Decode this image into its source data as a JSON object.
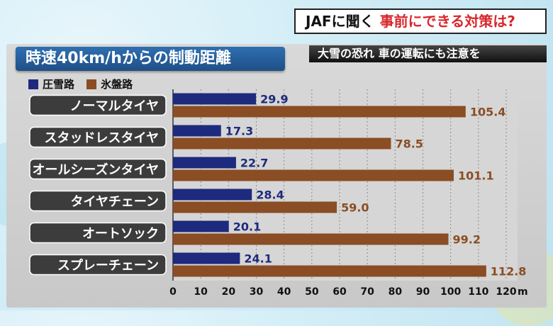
{
  "header": {
    "caption_main": "JAFに聞く",
    "caption_highlight": "事前にできる対策は?",
    "sub_caption": "大雪の恐れ 車の運転にも注意を"
  },
  "colors": {
    "series_snow": "#1d2a7d",
    "series_ice": "#8a4d24",
    "title_bg": "#2a64a3",
    "highlight": "#d8262b"
  },
  "chart_data": {
    "type": "bar",
    "orientation": "horizontal",
    "title": "時速40km/hからの制動距離",
    "categories": [
      "ノーマルタイヤ",
      "スタッドレスタイヤ",
      "オールシーズンタイヤ",
      "タイヤチェーン",
      "オートソック",
      "スプレーチェーン"
    ],
    "series": [
      {
        "name": "圧雪路",
        "values": [
          29.9,
          17.3,
          22.7,
          28.4,
          20.1,
          24.1
        ],
        "value_labels": [
          "29.9",
          "17.3",
          "22.7",
          "28.4",
          "20.1",
          "24.1"
        ]
      },
      {
        "name": "氷盤路",
        "values": [
          105.4,
          78.5,
          101.1,
          59.0,
          99.2,
          112.8
        ],
        "value_labels": [
          "105.4",
          "78.5",
          "101.1",
          "59.0",
          "99.2",
          "112.8"
        ]
      }
    ],
    "xlim": [
      0,
      120
    ],
    "xticks": [
      0,
      10,
      20,
      30,
      40,
      50,
      60,
      70,
      80,
      90,
      100,
      110,
      120
    ],
    "xticklabels": [
      "0",
      "10",
      "20",
      "30",
      "40",
      "50",
      "60",
      "70",
      "80",
      "90",
      "100",
      "110",
      "120"
    ],
    "unit": "m",
    "grid": "vertical dotted",
    "legend": "top-left"
  }
}
